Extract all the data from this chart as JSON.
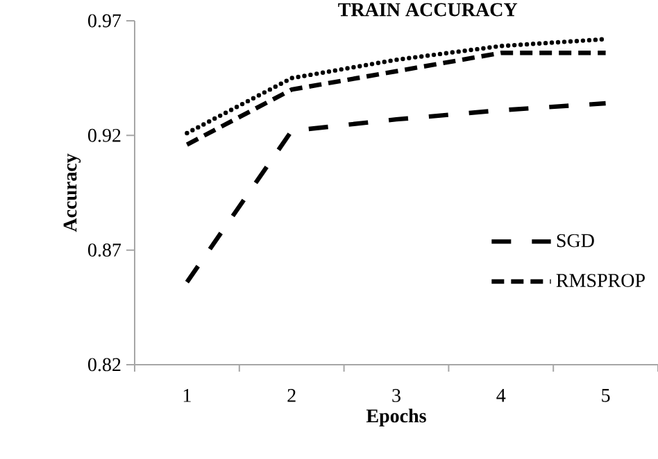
{
  "chart_data": {
    "type": "line",
    "title": "TRAIN ACCURACY",
    "xlabel": "Epochs",
    "ylabel": "Accuracy",
    "categories": [
      "1",
      "2",
      "3",
      "4",
      "5"
    ],
    "ylim": [
      0.82,
      0.97
    ],
    "yticks": [
      0.82,
      0.87,
      0.92,
      0.97
    ],
    "series": [
      {
        "name": "SGD",
        "color": "#000000",
        "line_style": "dashdot",
        "values": [
          0.856,
          0.922,
          0.927,
          0.931,
          0.934
        ]
      },
      {
        "name": "RMSPROP",
        "color": "#000000",
        "line_style": "dashed",
        "values": [
          0.916,
          0.94,
          0.948,
          0.956,
          0.956
        ]
      },
      {
        "color": "#000000",
        "line_style": "dotted",
        "values": [
          0.921,
          0.945,
          0.953,
          0.959,
          0.962
        ]
      }
    ],
    "grid": false,
    "legend": "right",
    "marker": "none"
  }
}
